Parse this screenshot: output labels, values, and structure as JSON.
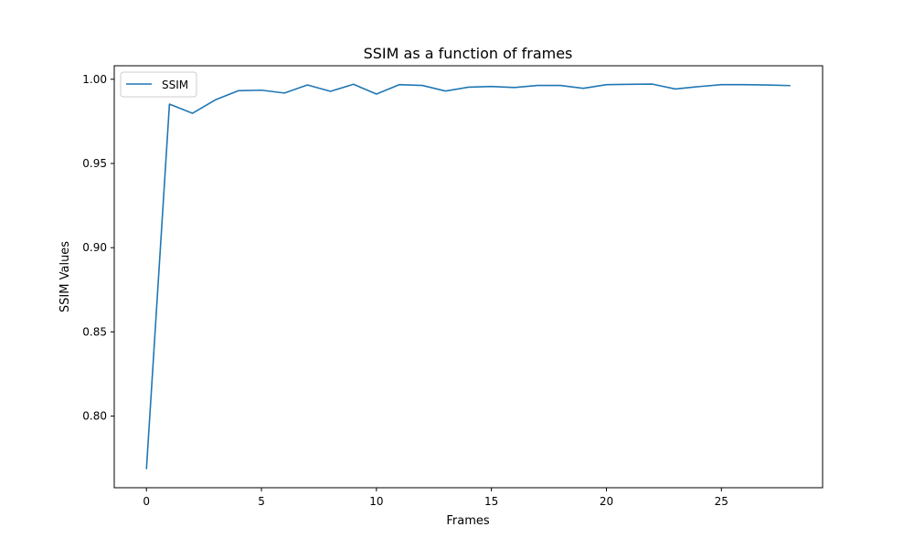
{
  "chart_data": {
    "type": "line",
    "title": "SSIM as a function of frames",
    "xlabel": "Frames",
    "ylabel": "SSIM Values",
    "xlim": [
      -1.4,
      29.4
    ],
    "ylim": [
      0.7575,
      1.008
    ],
    "xticks": [
      0,
      5,
      10,
      15,
      20,
      25
    ],
    "yticks": [
      0.8,
      0.85,
      0.9,
      0.95,
      1.0
    ],
    "ytick_labels": [
      "0.80",
      "0.85",
      "0.90",
      "0.95",
      "1.00"
    ],
    "grid": false,
    "legend": {
      "position": "upper-left",
      "entries": [
        "SSIM"
      ]
    },
    "colors": {
      "series": "#1f77b4"
    },
    "series": [
      {
        "name": "SSIM",
        "x": [
          0,
          1,
          2,
          3,
          4,
          5,
          6,
          7,
          8,
          9,
          10,
          11,
          12,
          13,
          14,
          15,
          16,
          17,
          18,
          19,
          20,
          21,
          22,
          23,
          24,
          25,
          26,
          27,
          28
        ],
        "values": [
          0.7685,
          0.9852,
          0.9798,
          0.9878,
          0.9932,
          0.9935,
          0.9918,
          0.9966,
          0.9928,
          0.997,
          0.9912,
          0.9968,
          0.9963,
          0.993,
          0.9953,
          0.9957,
          0.9951,
          0.9963,
          0.9963,
          0.9946,
          0.9968,
          0.997,
          0.9971,
          0.9942,
          0.9956,
          0.9968,
          0.9968,
          0.9966,
          0.9962
        ]
      }
    ]
  }
}
